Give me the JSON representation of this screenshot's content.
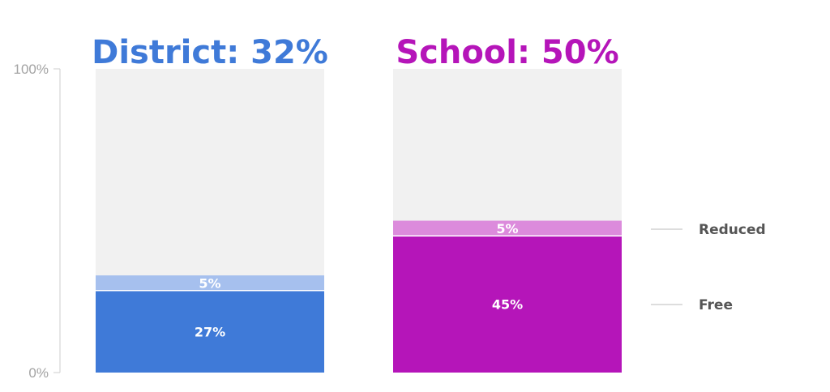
{
  "chart_data": {
    "type": "bar",
    "stacked": true,
    "y_ticks": [
      "100%",
      "0%"
    ],
    "ylim": [
      0,
      100
    ],
    "categories": [
      "District",
      "School"
    ],
    "titles": [
      "District: 32%",
      "School: 50%"
    ],
    "title_colors": [
      "#3f7ad8",
      "#b515b9"
    ],
    "series": [
      {
        "name": "Free",
        "values": [
          27,
          45
        ],
        "labels": [
          "27%",
          "45%"
        ],
        "colors": [
          "#3f7ad8",
          "#b515b9"
        ]
      },
      {
        "name": "Reduced",
        "values": [
          5,
          5
        ],
        "labels": [
          "5%",
          "5%"
        ],
        "colors": [
          "#a6c0ee",
          "#dc8bdc"
        ]
      }
    ],
    "remainder_color": "#f1f1f1",
    "legend_placement": "right",
    "legend": [
      "Reduced",
      "Free"
    ],
    "grid": false
  }
}
